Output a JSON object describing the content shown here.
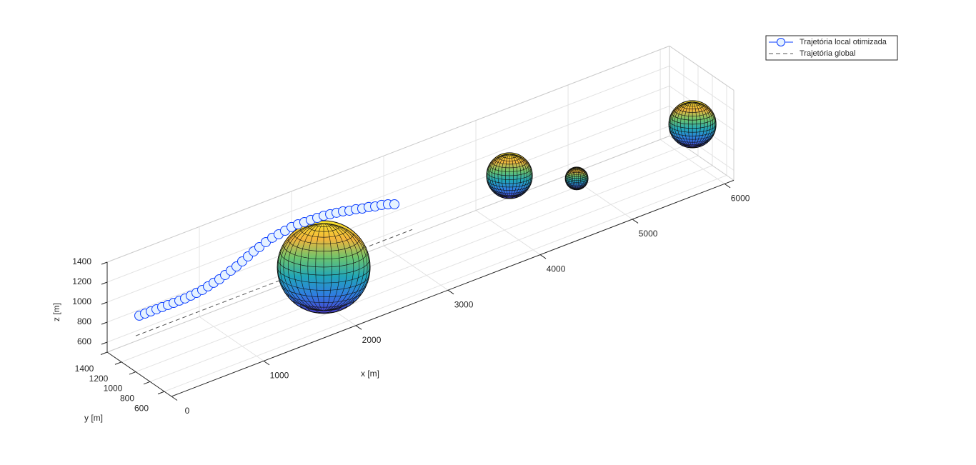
{
  "chart_data": {
    "type": "line3d",
    "xlabel": "x [m]",
    "ylabel": "y [m]",
    "zlabel": "z [m]",
    "xlim": [
      0,
      6100
    ],
    "ylim": [
      500,
      1400
    ],
    "zlim": [
      500,
      1400
    ],
    "xticks": [
      0,
      1000,
      2000,
      3000,
      4000,
      5000,
      6000
    ],
    "yticks": [
      600,
      800,
      1000,
      1200,
      1400
    ],
    "zticks": [
      600,
      800,
      1000,
      1200,
      1400
    ],
    "grid": true,
    "legend": "northeastoutside",
    "series": [
      {
        "name": "Trajetória local otimizada",
        "color": "#0a3cff",
        "marker_face": "#e6f2ff",
        "marker": "o",
        "linestyle": "solid",
        "x": [
          39,
          101,
          163,
          225,
          287,
          349,
          411,
          473,
          535,
          597,
          659,
          721,
          783,
          845,
          907,
          969,
          1031,
          1093,
          1155,
          1217,
          1279,
          1341,
          1411,
          1481,
          1550,
          1620,
          1690,
          1760,
          1829,
          1899,
          1969,
          2039,
          2109,
          2178,
          2248,
          2318,
          2388,
          2457,
          2527,
          2597,
          2667,
          2736,
          2806
        ],
        "y": [
          1000,
          1000,
          1000,
          1000,
          1000,
          1000,
          1000,
          1000,
          1000,
          1000,
          1000,
          1000,
          1000,
          1000,
          1000,
          1000,
          1000,
          1000,
          1000,
          1000,
          1000,
          1000,
          1000,
          1000,
          1000,
          1000,
          1000,
          1000,
          1000,
          1000,
          1000,
          1000,
          1000,
          1000,
          1000,
          1000,
          1000,
          1000,
          1000,
          1000,
          1000,
          1000,
          1000
        ],
        "z": [
          1048,
          1047,
          1047,
          1046,
          1046,
          1045,
          1044,
          1044,
          1044,
          1050,
          1056,
          1063,
          1077,
          1091,
          1104,
          1125,
          1146,
          1167,
          1195,
          1223,
          1251,
          1272,
          1297,
          1316,
          1326,
          1337,
          1349,
          1352,
          1349,
          1346,
          1342,
          1339,
          1329,
          1319,
          1308,
          1290,
          1280,
          1262,
          1252,
          1234,
          1224,
          1206,
          1181
        ]
      },
      {
        "name": "Trajetória global",
        "color": "#555555",
        "linestyle": "dashed",
        "x": [
          0,
          3000
        ],
        "y": [
          1000,
          1000
        ],
        "z": [
          860,
          860
        ]
      }
    ],
    "obstacles": [
      {
        "x": 2039,
        "y": 1000,
        "z": 825,
        "r": 464
      },
      {
        "x": 4054,
        "y": 1000,
        "z": 1025,
        "r": 229
      },
      {
        "x": 4783,
        "y": 1000,
        "z": 739,
        "r": 114
      },
      {
        "x": 6039,
        "y": 1000,
        "z": 836,
        "r": 236
      }
    ],
    "obstacle_colormap": [
      "#f9e52a",
      "#f3b53c",
      "#6cc46d",
      "#21a6b8",
      "#2f7de0",
      "#4a3fd0"
    ]
  }
}
